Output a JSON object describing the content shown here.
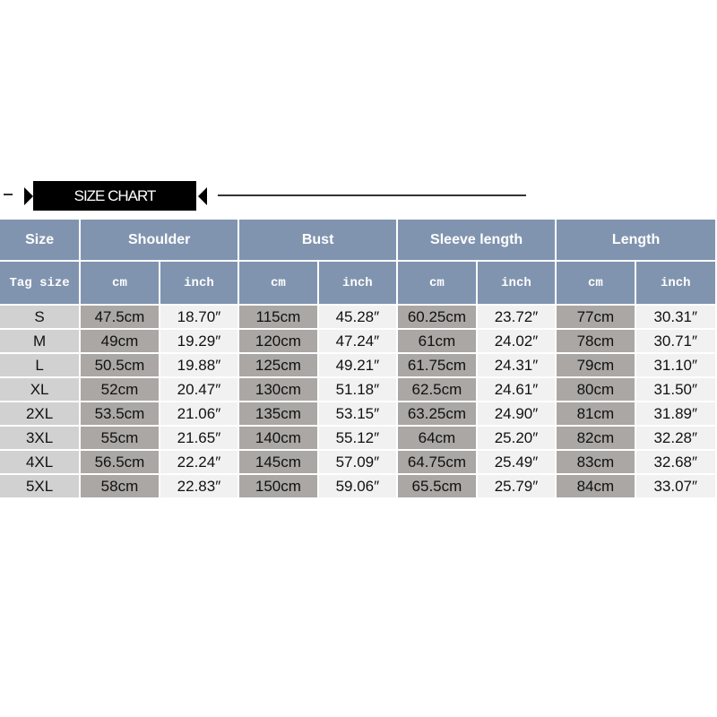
{
  "title": "SIZE CHART",
  "headers": [
    "Size",
    "Shoulder",
    "Bust",
    "Sleeve length",
    "Length"
  ],
  "subheaders": [
    "Tag size",
    "cm",
    "inch",
    "cm",
    "inch",
    "cm",
    "inch",
    "cm",
    "inch"
  ],
  "colors": {
    "header": "#8194af",
    "size_cell": "#d1d1d1",
    "cm_cell": "#aaa7a5",
    "inch_cell": "#f1f1f1"
  },
  "rows": [
    [
      "S",
      "47.5cm",
      "18.70″",
      "115cm",
      "45.28″",
      "60.25cm",
      "23.72″",
      "77cm",
      "30.31″"
    ],
    [
      "M",
      "49cm",
      "19.29″",
      "120cm",
      "47.24″",
      "61cm",
      "24.02″",
      "78cm",
      "30.71″"
    ],
    [
      "L",
      "50.5cm",
      "19.88″",
      "125cm",
      "49.21″",
      "61.75cm",
      "24.31″",
      "79cm",
      "31.10″"
    ],
    [
      "XL",
      "52cm",
      "20.47″",
      "130cm",
      "51.18″",
      "62.5cm",
      "24.61″",
      "80cm",
      "31.50″"
    ],
    [
      "2XL",
      "53.5cm",
      "21.06″",
      "135cm",
      "53.15″",
      "63.25cm",
      "24.90″",
      "81cm",
      "31.89″"
    ],
    [
      "3XL",
      "55cm",
      "21.65″",
      "140cm",
      "55.12″",
      "64cm",
      "25.20″",
      "82cm",
      "32.28″"
    ],
    [
      "4XL",
      "56.5cm",
      "22.24″",
      "145cm",
      "57.09″",
      "64.75cm",
      "25.49″",
      "83cm",
      "32.68″"
    ],
    [
      "5XL",
      "58cm",
      "22.83″",
      "150cm",
      "59.06″",
      "65.5cm",
      "25.79″",
      "84cm",
      "33.07″"
    ]
  ]
}
